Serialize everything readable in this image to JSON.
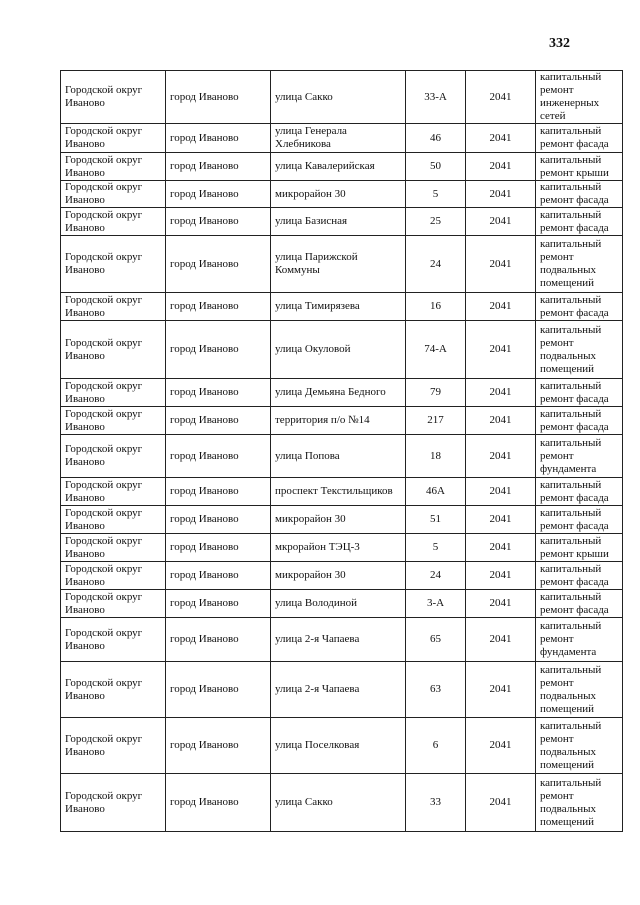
{
  "page_number": "332",
  "rows": [
    {
      "district": "Городской округ Иваново",
      "city": "город Иваново",
      "street": "улица Сакко",
      "house": "33-А",
      "year": "2041",
      "work": "капитальный ремонт инженерных сетей"
    },
    {
      "district": "Городской округ Иваново",
      "city": "город Иваново",
      "street": "улица Генерала Хлебникова",
      "house": "46",
      "year": "2041",
      "work": "капитальный ремонт фасада"
    },
    {
      "district": "Городской округ Иваново",
      "city": "город Иваново",
      "street": "улица Кавалерийская",
      "house": "50",
      "year": "2041",
      "work": "капитальный ремонт крыши"
    },
    {
      "district": "Городской округ Иваново",
      "city": "город Иваново",
      "street": "микрорайон 30",
      "house": "5",
      "year": "2041",
      "work": "капитальный ремонт фасада"
    },
    {
      "district": "Городской округ Иваново",
      "city": "город Иваново",
      "street": "улица Базисная",
      "house": "25",
      "year": "2041",
      "work": "капитальный ремонт фасада"
    },
    {
      "district": "Городской округ Иваново",
      "city": "город Иваново",
      "street": "улица Парижской Коммуны",
      "house": "24",
      "year": "2041",
      "work": "капитальный ремонт подвальных помещений"
    },
    {
      "district": "Городской округ Иваново",
      "city": "город Иваново",
      "street": "улица Тимирязева",
      "house": "16",
      "year": "2041",
      "work": "капитальный ремонт фасада"
    },
    {
      "district": "Городской округ Иваново",
      "city": "город Иваново",
      "street": "улица Окуловой",
      "house": "74-А",
      "year": "2041",
      "work": "капитальный ремонт подвальных помещений"
    },
    {
      "district": "Городской округ Иваново",
      "city": "город Иваново",
      "street": "улица Демьяна Бедного",
      "house": "79",
      "year": "2041",
      "work": "капитальный ремонт фасада"
    },
    {
      "district": "Городской округ Иваново",
      "city": "город Иваново",
      "street": "территория п/о №14",
      "house": "217",
      "year": "2041",
      "work": "капитальный ремонт фасада"
    },
    {
      "district": "Городской округ Иваново",
      "city": "город Иваново",
      "street": "улица Попова",
      "house": "18",
      "year": "2041",
      "work": "капитальный ремонт фундамента"
    },
    {
      "district": "Городской округ Иваново",
      "city": "город Иваново",
      "street": "проспект Текстильщиков",
      "house": "46А",
      "year": "2041",
      "work": "капитальный ремонт фасада"
    },
    {
      "district": "Городской округ Иваново",
      "city": "город Иваново",
      "street": "микрорайон 30",
      "house": "51",
      "year": "2041",
      "work": "капитальный ремонт фасада"
    },
    {
      "district": "Городской округ Иваново",
      "city": "город Иваново",
      "street": "мкрорайон ТЭЦ-3",
      "house": "5",
      "year": "2041",
      "work": "капитальный ремонт крыши"
    },
    {
      "district": "Городской округ Иваново",
      "city": "город Иваново",
      "street": "микрорайон 30",
      "house": "24",
      "year": "2041",
      "work": "капитальный ремонт фасада"
    },
    {
      "district": "Городской округ Иваново",
      "city": "город Иваново",
      "street": "улица Володиной",
      "house": "3-А",
      "year": "2041",
      "work": "капитальный ремонт фасада"
    },
    {
      "district": "Городской округ Иваново",
      "city": "город Иваново",
      "street": "улица 2-я Чапаева",
      "house": "65",
      "year": "2041",
      "work": "капитальный ремонт фундамента"
    },
    {
      "district": "Городской округ Иваново",
      "city": "город Иваново",
      "street": "улица 2-я Чапаева",
      "house": "63",
      "year": "2041",
      "work": "капитальный ремонт подвальных помещений"
    },
    {
      "district": "Городской округ Иваново",
      "city": "город Иваново",
      "street": "улица Поселковая",
      "house": "6",
      "year": "2041",
      "work": "капитальный ремонт подвальных помещений"
    },
    {
      "district": "Городской округ Иваново",
      "city": "город Иваново",
      "street": "улица Сакко",
      "house": "33",
      "year": "2041",
      "work": "капитальный ремонт подвальных помещений"
    }
  ]
}
